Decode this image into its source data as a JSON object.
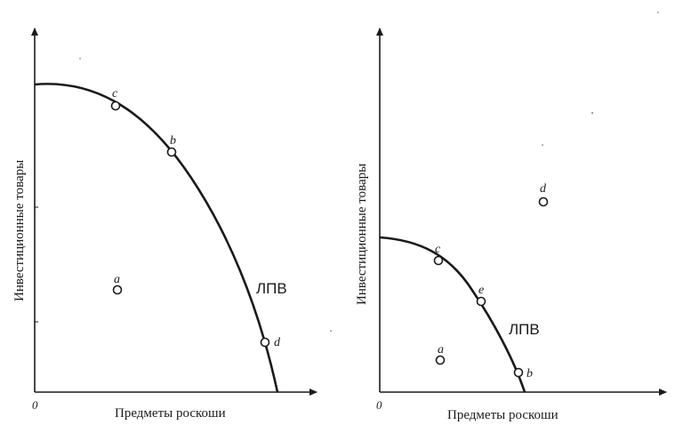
{
  "panels": [
    {
      "xlabel": "Предметы роскоши",
      "ylabel": "Инвестиционные товары",
      "origin": "0",
      "curve_label": "ЛПВ",
      "points": [
        {
          "name": "c",
          "on_curve": true
        },
        {
          "name": "b",
          "on_curve": true
        },
        {
          "name": "d",
          "on_curve": true
        },
        {
          "name": "a",
          "on_curve": false
        }
      ]
    },
    {
      "xlabel": "Предметы роскоши",
      "ylabel": "Инвестиционные товары",
      "origin": "0",
      "curve_label": "ЛПВ",
      "points": [
        {
          "name": "c",
          "on_curve": true
        },
        {
          "name": "e",
          "on_curve": true
        },
        {
          "name": "b",
          "on_curve": true
        },
        {
          "name": "a",
          "on_curve": false
        },
        {
          "name": "d",
          "on_curve": false
        }
      ]
    }
  ]
}
